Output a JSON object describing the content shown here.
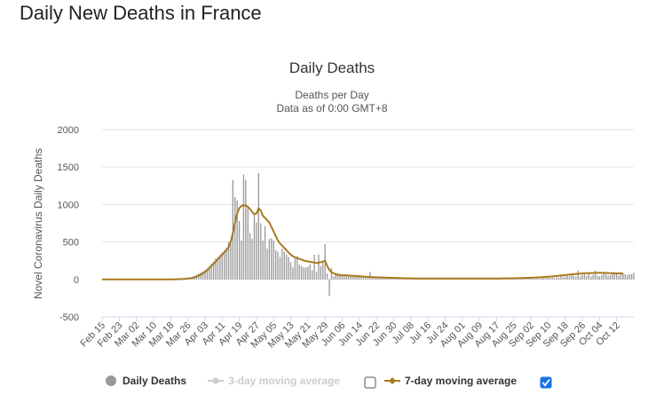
{
  "page": {
    "title": "Daily New Deaths in France"
  },
  "chart_data": {
    "type": "bar",
    "title": "Daily Deaths",
    "subtitle_lines": [
      "Deaths per Day",
      "Data as of 0:00 GMT+8"
    ],
    "ylabel": "Novel Coronavirus Daily Deaths",
    "xlabel": "",
    "ylim": [
      -500,
      2000
    ],
    "yticks": [
      -500,
      0,
      500,
      1000,
      1500,
      2000
    ],
    "grid": true,
    "start_date": "Feb 15",
    "x_tick_labels": [
      "Feb 15",
      "Feb 23",
      "Mar 02",
      "Mar 10",
      "Mar 18",
      "Mar 26",
      "Apr 03",
      "Apr 11",
      "Apr 19",
      "Apr 27",
      "May 05",
      "May 13",
      "May 21",
      "May 29",
      "Jun 06",
      "Jun 14",
      "Jun 22",
      "Jun 30",
      "Jul 08",
      "Jul 16",
      "Jul 24",
      "Aug 01",
      "Aug 09",
      "Aug 17",
      "Aug 25",
      "Sep 02",
      "Sep 10",
      "Sep 18",
      "Sep 26",
      "Oct 04",
      "Oct 12"
    ],
    "series": [
      {
        "name": "Daily Deaths",
        "kind": "bar",
        "color": "#999999",
        "visible": true,
        "values": [
          0,
          0,
          0,
          0,
          0,
          0,
          0,
          0,
          0,
          0,
          0,
          0,
          0,
          0,
          0,
          0,
          0,
          0,
          0,
          0,
          0,
          0,
          0,
          0,
          0,
          0,
          0,
          0,
          0,
          0,
          0,
          0,
          1,
          2,
          3,
          4,
          5,
          9,
          10,
          12,
          15,
          20,
          35,
          45,
          60,
          80,
          95,
          110,
          130,
          150,
          180,
          210,
          240,
          280,
          300,
          330,
          360,
          390,
          420,
          500,
          470,
          1330,
          1100,
          1050,
          780,
          520,
          1400,
          1330,
          980,
          620,
          540,
          860,
          760,
          1420,
          750,
          520,
          710,
          410,
          540,
          550,
          520,
          390,
          370,
          300,
          410,
          370,
          330,
          300,
          230,
          160,
          280,
          310,
          200,
          180,
          160,
          160,
          170,
          200,
          120,
          330,
          100,
          330,
          180,
          240,
          470,
          80,
          -220,
          150,
          40,
          90,
          80,
          70,
          60,
          55,
          50,
          60,
          50,
          45,
          40,
          60,
          35,
          30,
          25,
          30,
          25,
          100,
          20,
          25,
          20,
          15,
          20,
          15,
          15,
          15,
          10,
          10,
          10,
          10,
          10,
          10,
          15,
          10,
          10,
          15,
          15,
          10,
          15,
          20,
          10,
          10,
          15,
          10,
          10,
          10,
          10,
          10,
          10,
          10,
          10,
          10,
          10,
          10,
          10,
          10,
          10,
          10,
          10,
          10,
          10,
          10,
          10,
          10,
          10,
          10,
          10,
          10,
          10,
          10,
          10,
          10,
          10,
          10,
          10,
          10,
          10,
          10,
          10,
          10,
          10,
          10,
          10,
          10,
          10,
          10,
          10,
          10,
          10,
          15,
          10,
          10,
          15,
          10,
          10,
          15,
          10,
          15,
          20,
          20,
          25,
          20,
          30,
          20,
          30,
          25,
          60,
          30,
          40,
          50,
          40,
          60,
          50,
          40,
          120,
          40,
          60,
          70,
          50,
          80,
          40,
          60,
          120,
          50,
          40,
          60,
          80,
          70,
          50,
          60,
          80,
          70,
          80,
          50,
          70,
          80,
          70,
          60,
          70,
          70,
          90
        ]
      },
      {
        "name": "3-day moving average",
        "kind": "line",
        "color": "#cccccc",
        "visible": false
      },
      {
        "name": "7-day moving average",
        "kind": "line",
        "color": "#a87a20",
        "visible": true,
        "values": [
          0,
          0,
          0,
          0,
          0,
          0,
          0,
          0,
          0,
          0,
          0,
          0,
          0,
          0,
          0,
          0,
          0,
          0,
          0,
          0,
          0,
          0,
          0,
          0,
          0,
          0,
          0,
          0,
          0,
          0,
          0,
          0,
          1,
          1,
          2,
          3,
          4,
          5,
          7,
          9,
          12,
          15,
          20,
          28,
          38,
          50,
          65,
          80,
          100,
          120,
          150,
          180,
          210,
          240,
          270,
          300,
          330,
          360,
          390,
          430,
          500,
          620,
          760,
          880,
          950,
          980,
          990,
          985,
          970,
          940,
          900,
          870,
          880,
          950,
          920,
          850,
          820,
          790,
          760,
          700,
          640,
          580,
          520,
          480,
          450,
          420,
          390,
          360,
          330,
          310,
          295,
          285,
          275,
          265,
          255,
          245,
          240,
          235,
          230,
          225,
          220,
          225,
          230,
          240,
          250,
          180,
          130,
          95,
          80,
          70,
          60,
          60,
          55,
          55,
          55,
          52,
          50,
          48,
          46,
          44,
          42,
          40,
          38,
          36,
          35,
          33,
          32,
          30,
          29,
          28,
          27,
          26,
          25,
          24,
          23,
          22,
          21,
          20,
          19,
          18,
          17,
          16,
          15,
          15,
          14,
          14,
          13,
          13,
          12,
          12,
          12,
          12,
          12,
          12,
          12,
          12,
          12,
          12,
          12,
          12,
          12,
          12,
          12,
          12,
          12,
          12,
          12,
          12,
          12,
          12,
          12,
          12,
          12,
          12,
          12,
          12,
          12,
          12,
          12,
          12,
          12,
          12,
          13,
          13,
          13,
          13,
          14,
          14,
          14,
          15,
          15,
          15,
          16,
          16,
          17,
          18,
          19,
          20,
          21,
          22,
          23,
          24,
          25,
          27,
          28,
          30,
          32,
          34,
          36,
          38,
          40,
          43,
          46,
          49,
          52,
          55,
          58,
          61,
          64,
          67,
          70,
          73,
          76,
          78,
          80,
          82,
          83,
          84,
          85,
          86,
          87,
          88,
          88,
          88,
          87,
          86,
          85,
          84,
          83,
          82,
          81,
          80,
          80,
          80
        ]
      }
    ],
    "legend": {
      "placement": "bottom-center",
      "items": [
        {
          "label": "Daily Deaths",
          "checked": null
        },
        {
          "label": "3-day moving average",
          "checked": false
        },
        {
          "label": "7-day moving average",
          "checked": true
        }
      ]
    }
  }
}
